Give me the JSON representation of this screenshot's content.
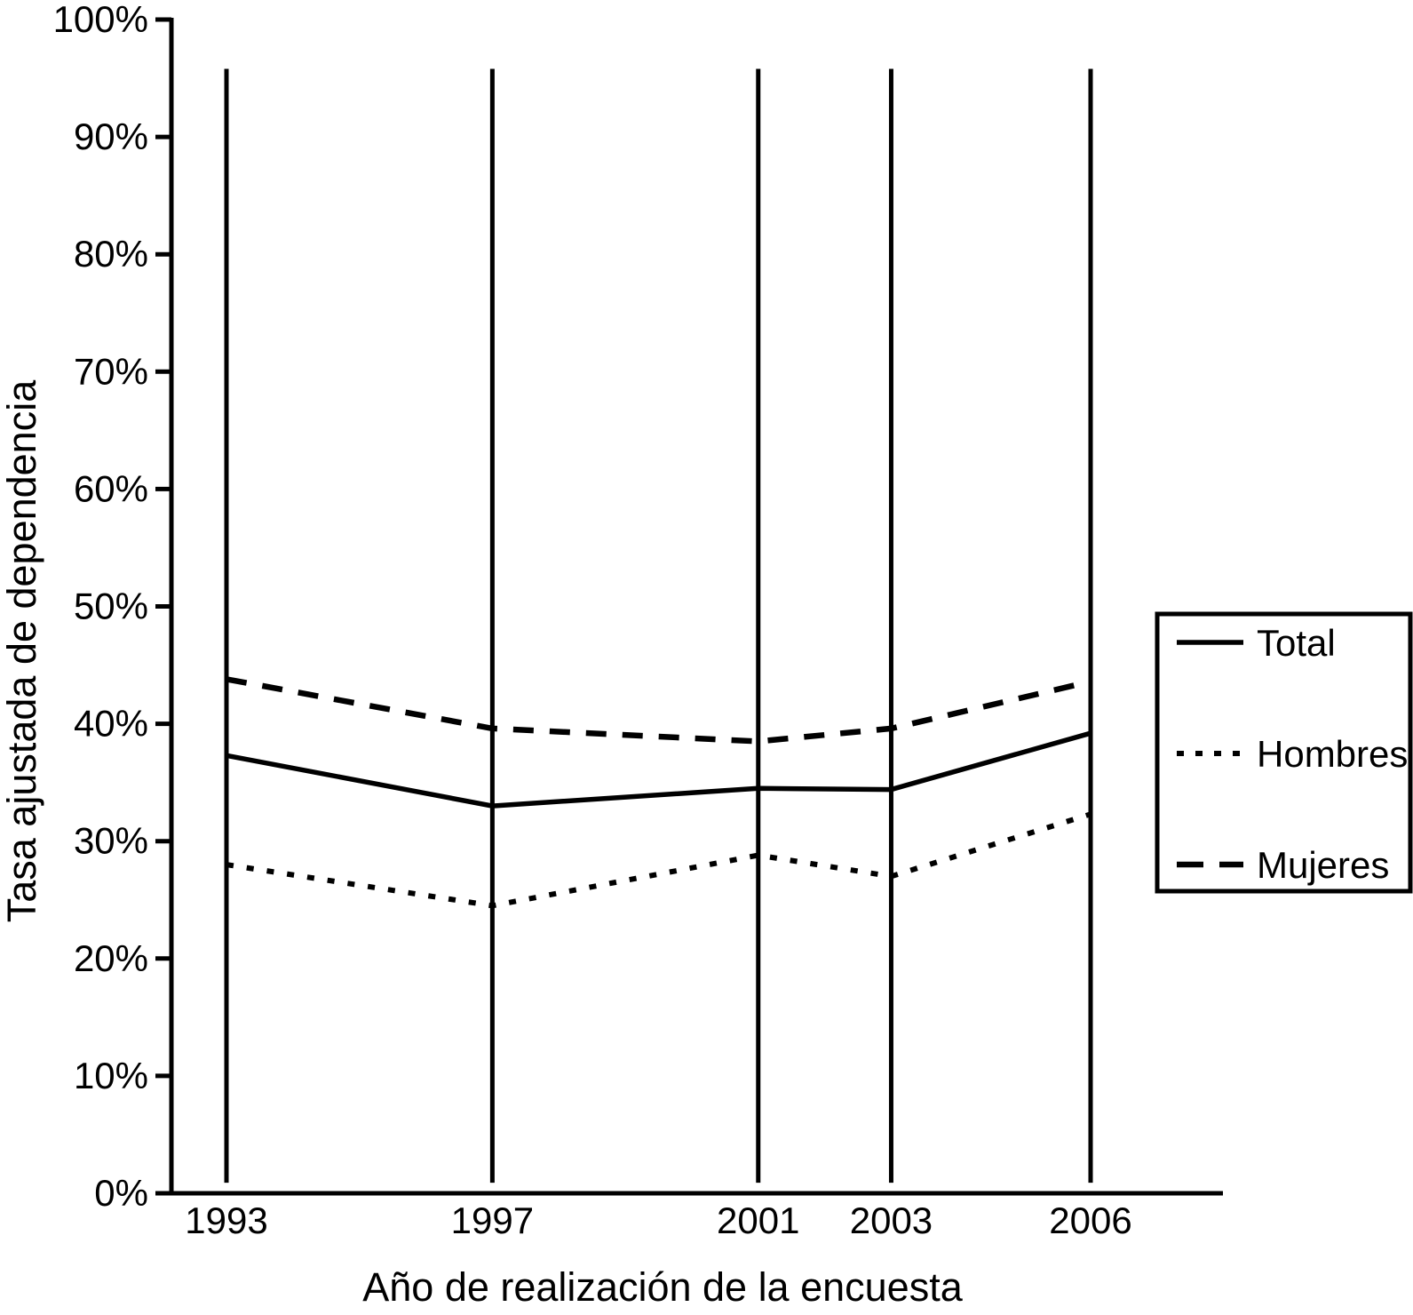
{
  "chart_data": {
    "type": "line",
    "title": "",
    "xlabel": "Año de realización de la encuesta",
    "ylabel": "Tasa ajustada de dependencia",
    "x": [
      1993,
      1997,
      2001,
      2003,
      2006
    ],
    "x_tick_labels": [
      "1993",
      "1997",
      "2001",
      "2003",
      "2006"
    ],
    "y_ticks_pct": [
      0,
      10,
      20,
      30,
      40,
      50,
      60,
      70,
      80,
      90,
      100
    ],
    "y_tick_labels": [
      "0%",
      "10%",
      "20%",
      "30%",
      "40%",
      "50%",
      "60%",
      "70%",
      "80%",
      "90%",
      "100%"
    ],
    "ylim": [
      0,
      100
    ],
    "xlim_years": [
      1992.2,
      2008
    ],
    "grid": false,
    "series": [
      {
        "name": "Total",
        "line_style": "solid",
        "values": [
          37.3,
          33.0,
          34.5,
          34.4,
          39.2
        ]
      },
      {
        "name": "Hombres",
        "line_style": "dotted",
        "values": [
          28.0,
          24.5,
          28.8,
          27.0,
          32.3
        ]
      },
      {
        "name": "Mujeres",
        "line_style": "dashed",
        "values": [
          43.8,
          39.6,
          38.5,
          39.6,
          43.6
        ]
      }
    ],
    "vertical_reference_lines": {
      "at_each_survey_year": true,
      "y_from_pct": 0.9,
      "y_to_pct": 95.8
    },
    "legend": {
      "position": "center-right",
      "entries": [
        "Total",
        "Hombres",
        "Mujeres"
      ]
    },
    "colors": {
      "foreground": "#000000",
      "background": "#ffffff"
    }
  }
}
